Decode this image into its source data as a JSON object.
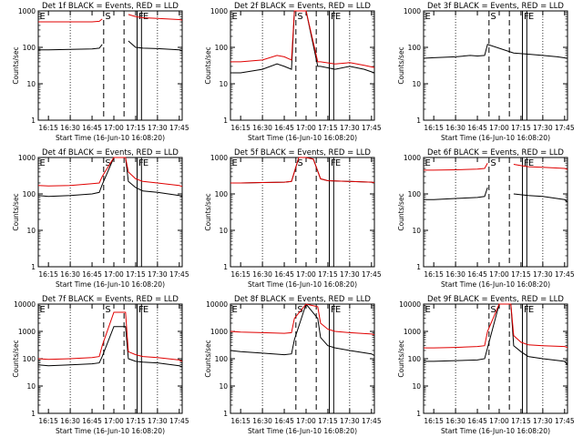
{
  "figure": {
    "xlabel": "Start Time (16-Jun-10 16:08:20)",
    "ylabel": "Counts/sec",
    "x_tick_labels": [
      "16:15",
      "16:30",
      "16:45",
      "17:00",
      "17:15",
      "17:30",
      "17:45"
    ],
    "y_tick_labels": [
      "1",
      "10",
      "100",
      "1000",
      "10000"
    ],
    "marker_labels": [
      "E",
      "S",
      "F",
      "E"
    ]
  },
  "colors": {
    "events": "#000000",
    "lld": "#e00000",
    "background": "#ffffff"
  },
  "chart_data": [
    {
      "type": "line",
      "title": "Det 1f BLACK = Events, RED = LLD",
      "xlabel": "Start Time (16-Jun-10 16:08:20)",
      "ylabel": "Counts/sec",
      "ylim": [
        1,
        1000
      ],
      "yscale": "log",
      "x": [
        "16:08",
        "16:15",
        "16:30",
        "16:45",
        "16:50",
        "16:52",
        "17:00",
        "17:08",
        "17:10",
        "17:15",
        "17:20",
        "17:30",
        "17:45",
        "17:47"
      ],
      "series": [
        {
          "name": "Events",
          "values": [
            85,
            85,
            88,
            90,
            95,
            120,
            null,
            null,
            150,
            100,
            95,
            92,
            85,
            80
          ]
        },
        {
          "name": "LLD",
          "values": [
            500,
            500,
            500,
            500,
            520,
            600,
            null,
            null,
            800,
            700,
            650,
            620,
            580,
            560
          ]
        }
      ],
      "markers": [
        {
          "label": "E",
          "x": "16:08",
          "style": "solid"
        },
        {
          "label": "S",
          "x": "16:53",
          "style": "dashed"
        },
        {
          "label": "",
          "x": "17:07",
          "style": "dashed"
        },
        {
          "label": "F",
          "x": "17:16",
          "style": "solid"
        },
        {
          "label": "E",
          "x": "17:19",
          "style": "solid"
        }
      ],
      "grid": "dotted-vertical"
    },
    {
      "type": "line",
      "title": "Det 2f BLACK = Events, RED = LLD",
      "xlabel": "Start Time (16-Jun-10 16:08:20)",
      "ylabel": "Counts/sec",
      "ylim": [
        1,
        1000
      ],
      "yscale": "log",
      "x": [
        "16:08",
        "16:15",
        "16:30",
        "16:40",
        "16:45",
        "16:50",
        "16:52",
        "17:00",
        "17:08",
        "17:10",
        "17:20",
        "17:30",
        "17:40",
        "17:47"
      ],
      "series": [
        {
          "name": "Events",
          "values": [
            20,
            20,
            25,
            35,
            30,
            25,
            1000,
            1000,
            30,
            30,
            25,
            30,
            25,
            20
          ]
        },
        {
          "name": "LLD",
          "values": [
            40,
            40,
            45,
            60,
            55,
            45,
            1000,
            1000,
            40,
            40,
            35,
            38,
            32,
            28
          ]
        }
      ],
      "markers": [
        {
          "label": "E",
          "x": "16:08",
          "style": "solid"
        },
        {
          "label": "S",
          "x": "16:53",
          "style": "dashed"
        },
        {
          "label": "",
          "x": "17:07",
          "style": "dashed"
        },
        {
          "label": "F",
          "x": "17:16",
          "style": "solid"
        },
        {
          "label": "E",
          "x": "17:19",
          "style": "solid"
        }
      ],
      "grid": "dotted-vertical"
    },
    {
      "type": "line",
      "title": "Det 3f BLACK = Events, RED = LLD",
      "xlabel": "Start Time (16-Jun-10 16:08:20)",
      "ylabel": "Counts/sec",
      "ylim": [
        1,
        1000
      ],
      "yscale": "log",
      "x": [
        "16:08",
        "16:15",
        "16:30",
        "16:40",
        "16:45",
        "16:50",
        "16:52",
        "17:10",
        "17:20",
        "17:30",
        "17:40",
        "17:47"
      ],
      "series": [
        {
          "name": "Events",
          "values": [
            50,
            52,
            55,
            60,
            58,
            60,
            120,
            70,
            65,
            60,
            55,
            50
          ]
        }
      ],
      "markers": [
        {
          "label": "E",
          "x": "16:08",
          "style": "solid"
        },
        {
          "label": "S",
          "x": "16:53",
          "style": "dashed"
        },
        {
          "label": "",
          "x": "17:07",
          "style": "dashed"
        },
        {
          "label": "F",
          "x": "17:16",
          "style": "solid"
        },
        {
          "label": "E",
          "x": "17:19",
          "style": "solid"
        }
      ],
      "grid": "dotted-vertical"
    },
    {
      "type": "line",
      "title": "Det 4f BLACK = Events, RED = LLD",
      "xlabel": "Start Time (16-Jun-10 16:08:20)",
      "ylabel": "Counts/sec",
      "ylim": [
        1,
        1000
      ],
      "yscale": "log",
      "x": [
        "16:08",
        "16:15",
        "16:30",
        "16:45",
        "16:50",
        "16:52",
        "17:00",
        "17:08",
        "17:10",
        "17:15",
        "17:20",
        "17:30",
        "17:45",
        "17:47"
      ],
      "series": [
        {
          "name": "Events",
          "values": [
            90,
            85,
            90,
            100,
            110,
            180,
            1000,
            1000,
            220,
            150,
            120,
            110,
            90,
            85
          ]
        },
        {
          "name": "LLD",
          "values": [
            170,
            165,
            170,
            190,
            200,
            300,
            1000,
            1000,
            400,
            260,
            220,
            200,
            170,
            160
          ]
        }
      ],
      "markers": [
        {
          "label": "E",
          "x": "16:08",
          "style": "solid"
        },
        {
          "label": "S",
          "x": "16:53",
          "style": "dashed"
        },
        {
          "label": "",
          "x": "17:07",
          "style": "dashed"
        },
        {
          "label": "F",
          "x": "17:16",
          "style": "solid"
        },
        {
          "label": "E",
          "x": "17:19",
          "style": "solid"
        }
      ],
      "grid": "dotted-vertical"
    },
    {
      "type": "line",
      "title": "Det 5f BLACK = Events, RED = LLD",
      "xlabel": "Start Time (16-Jun-10 16:08:20)",
      "ylabel": "Counts/sec",
      "ylim": [
        1,
        1000
      ],
      "yscale": "log",
      "x": [
        "16:08",
        "16:15",
        "16:30",
        "16:45",
        "16:50",
        "16:55",
        "17:00",
        "17:05",
        "17:10",
        "17:15",
        "17:30",
        "17:45",
        "17:47"
      ],
      "series": [
        {
          "name": "Events",
          "values": [
            200,
            200,
            205,
            210,
            220,
            1000,
            1000,
            900,
            260,
            230,
            220,
            210,
            205
          ]
        },
        {
          "name": "LLD",
          "values": [
            200,
            200,
            205,
            210,
            220,
            1000,
            1000,
            900,
            260,
            230,
            220,
            210,
            205
          ]
        }
      ],
      "markers": [
        {
          "label": "E",
          "x": "16:08",
          "style": "solid"
        },
        {
          "label": "S",
          "x": "16:53",
          "style": "dashed"
        },
        {
          "label": "",
          "x": "17:07",
          "style": "dashed"
        },
        {
          "label": "F",
          "x": "17:16",
          "style": "solid"
        },
        {
          "label": "E",
          "x": "17:19",
          "style": "solid"
        }
      ],
      "grid": "dotted-vertical"
    },
    {
      "type": "line",
      "title": "Det 6f BLACK = Events, RED = LLD",
      "xlabel": "Start Time (16-Jun-10 16:08:20)",
      "ylabel": "Counts/sec",
      "ylim": [
        1,
        1000
      ],
      "yscale": "log",
      "x": [
        "16:08",
        "16:15",
        "16:30",
        "16:45",
        "16:50",
        "16:52",
        "17:00",
        "17:08",
        "17:10",
        "17:15",
        "17:20",
        "17:30",
        "17:45",
        "17:47"
      ],
      "series": [
        {
          "name": "Events",
          "values": [
            70,
            70,
            75,
            80,
            85,
            150,
            null,
            null,
            100,
            95,
            90,
            85,
            70,
            60
          ]
        },
        {
          "name": "LLD",
          "values": [
            450,
            450,
            460,
            480,
            500,
            700,
            null,
            null,
            650,
            600,
            560,
            540,
            500,
            470
          ]
        }
      ],
      "markers": [
        {
          "label": "E",
          "x": "16:08",
          "style": "solid"
        },
        {
          "label": "S",
          "x": "16:53",
          "style": "dashed"
        },
        {
          "label": "",
          "x": "17:07",
          "style": "dashed"
        },
        {
          "label": "F",
          "x": "17:16",
          "style": "solid"
        },
        {
          "label": "E",
          "x": "17:19",
          "style": "solid"
        }
      ],
      "grid": "dotted-vertical"
    },
    {
      "type": "line",
      "title": "Det 7f BLACK = Events, RED = LLD",
      "xlabel": "Start Time (16-Jun-10 16:08:20)",
      "ylabel": "Counts/sec",
      "ylim": [
        1,
        10000
      ],
      "yscale": "log",
      "x": [
        "16:08",
        "16:15",
        "16:30",
        "16:45",
        "16:50",
        "16:52",
        "17:00",
        "17:08",
        "17:10",
        "17:15",
        "17:20",
        "17:30",
        "17:45",
        "17:47"
      ],
      "series": [
        {
          "name": "Events",
          "values": [
            60,
            55,
            60,
            65,
            70,
            120,
            1500,
            1500,
            100,
            80,
            75,
            70,
            55,
            50
          ]
        },
        {
          "name": "LLD",
          "values": [
            100,
            95,
            100,
            110,
            120,
            300,
            5000,
            5000,
            180,
            140,
            120,
            110,
            90,
            80
          ]
        }
      ],
      "markers": [
        {
          "label": "E",
          "x": "16:08",
          "style": "solid"
        },
        {
          "label": "S",
          "x": "16:53",
          "style": "dashed"
        },
        {
          "label": "",
          "x": "17:07",
          "style": "dashed"
        },
        {
          "label": "F",
          "x": "17:16",
          "style": "solid"
        },
        {
          "label": "E",
          "x": "17:19",
          "style": "solid"
        }
      ],
      "grid": "dotted-vertical"
    },
    {
      "type": "line",
      "title": "Det 8f BLACK = Events, RED = LLD",
      "xlabel": "Start Time (16-Jun-10 16:08:20)",
      "ylabel": "Counts/sec",
      "ylim": [
        1,
        10000
      ],
      "yscale": "log",
      "x": [
        "16:08",
        "16:15",
        "16:30",
        "16:45",
        "16:50",
        "16:52",
        "17:00",
        "17:08",
        "17:10",
        "17:15",
        "17:20",
        "17:30",
        "17:45",
        "17:47"
      ],
      "series": [
        {
          "name": "Events",
          "values": [
            200,
            180,
            160,
            140,
            150,
            500,
            10000,
            3000,
            600,
            300,
            250,
            200,
            150,
            130
          ]
        },
        {
          "name": "LLD",
          "values": [
            1000,
            950,
            900,
            850,
            900,
            3000,
            10000,
            8000,
            2000,
            1200,
            1000,
            900,
            800,
            750
          ]
        }
      ],
      "markers": [
        {
          "label": "E",
          "x": "16:08",
          "style": "solid"
        },
        {
          "label": "S",
          "x": "16:53",
          "style": "dashed"
        },
        {
          "label": "",
          "x": "17:07",
          "style": "dashed"
        },
        {
          "label": "F",
          "x": "17:16",
          "style": "solid"
        },
        {
          "label": "E",
          "x": "17:19",
          "style": "solid"
        }
      ],
      "grid": "dotted-vertical"
    },
    {
      "type": "line",
      "title": "Det 9f BLACK = Events, RED = LLD",
      "xlabel": "Start Time (16-Jun-10 16:08:20)",
      "ylabel": "Counts/sec",
      "ylim": [
        1,
        10000
      ],
      "yscale": "log",
      "x": [
        "16:08",
        "16:15",
        "16:30",
        "16:45",
        "16:50",
        "16:52",
        "17:00",
        "17:08",
        "17:10",
        "17:15",
        "17:20",
        "17:30",
        "17:45",
        "17:47"
      ],
      "series": [
        {
          "name": "Events",
          "values": [
            80,
            80,
            85,
            90,
            100,
            250,
            10000,
            10000,
            300,
            180,
            120,
            100,
            80,
            60
          ]
        },
        {
          "name": "LLD",
          "values": [
            250,
            250,
            260,
            280,
            300,
            1000,
            10000,
            10000,
            700,
            400,
            320,
            300,
            280,
            260
          ]
        }
      ],
      "markers": [
        {
          "label": "E",
          "x": "16:08",
          "style": "solid"
        },
        {
          "label": "S",
          "x": "16:53",
          "style": "dashed"
        },
        {
          "label": "",
          "x": "17:07",
          "style": "dashed"
        },
        {
          "label": "F",
          "x": "17:16",
          "style": "solid"
        },
        {
          "label": "E",
          "x": "17:19",
          "style": "solid"
        }
      ],
      "grid": "dotted-vertical"
    }
  ]
}
